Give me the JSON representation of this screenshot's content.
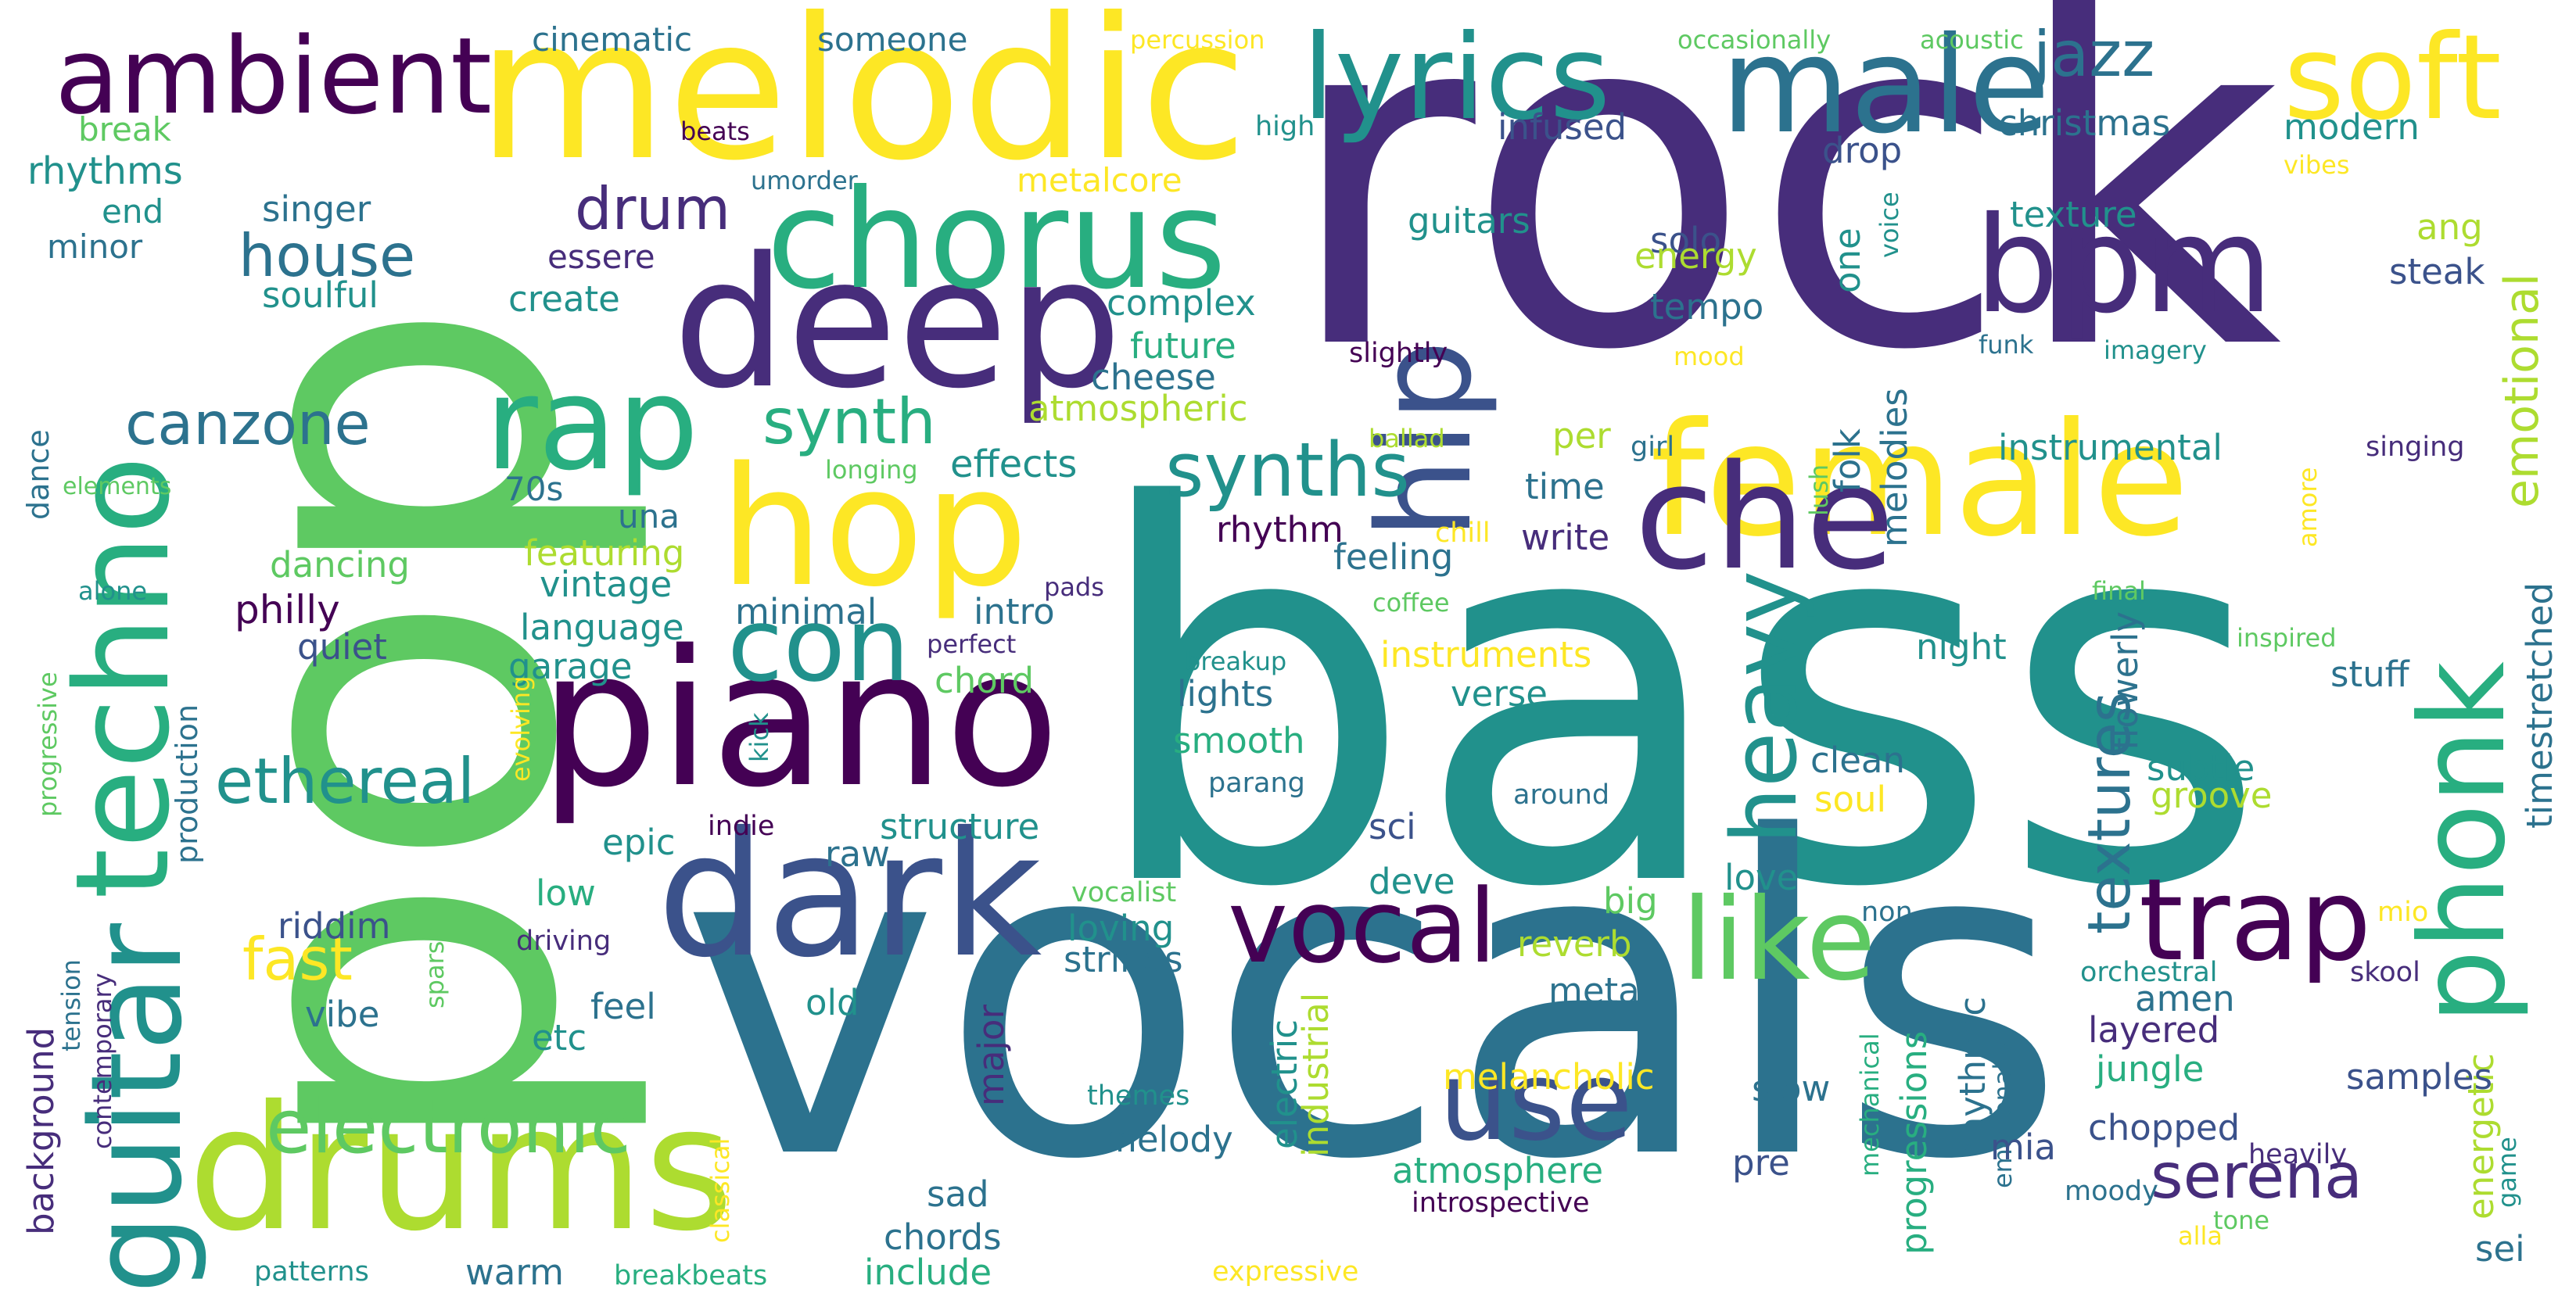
{
  "palette": {
    "dark_purple": "#440154",
    "indigo": "#472d7b",
    "slate_blue": "#3b528b",
    "steel_blue": "#2c728e",
    "teal": "#21918c",
    "green_teal": "#28ae80",
    "green": "#5ec962",
    "lime": "#addc30",
    "yellow": "#fde725"
  },
  "words": [
    {
      "text": "bass",
      "color": "#21918c"
    },
    {
      "text": "rock",
      "color": "#472d7b"
    },
    {
      "text": "pop",
      "color": "#5ec962"
    },
    {
      "text": "vocals",
      "color": "#2c728e"
    },
    {
      "text": "melodic",
      "color": "#fde725"
    },
    {
      "text": "deep",
      "color": "#472d7b"
    },
    {
      "text": "piano",
      "color": "#440154"
    },
    {
      "text": "dark",
      "color": "#3b528b"
    },
    {
      "text": "drums",
      "color": "#addc30"
    },
    {
      "text": "hop",
      "color": "#fde725"
    },
    {
      "text": "female",
      "color": "#fde725"
    },
    {
      "text": "chorus",
      "color": "#28ae80"
    },
    {
      "text": "male",
      "color": "#2c728e"
    },
    {
      "text": "rap",
      "color": "#28ae80"
    },
    {
      "text": "techno",
      "color": "#28ae80"
    },
    {
      "text": "guitar",
      "color": "#21918c"
    },
    {
      "text": "hip",
      "color": "#3b528b"
    },
    {
      "text": "lyrics",
      "color": "#21918c"
    },
    {
      "text": "soft",
      "color": "#fde725"
    },
    {
      "text": "bpm",
      "color": "#472d7b"
    },
    {
      "text": "ambient",
      "color": "#440154"
    },
    {
      "text": "che",
      "color": "#472d7b"
    },
    {
      "text": "phonk",
      "color": "#28ae80"
    },
    {
      "text": "trap",
      "color": "#440154"
    },
    {
      "text": "vocal",
      "color": "#440154"
    },
    {
      "text": "use",
      "color": "#3b528b"
    },
    {
      "text": "like",
      "color": "#5ec962"
    },
    {
      "text": "con",
      "color": "#21918c"
    },
    {
      "text": "electronic",
      "color": "#5ec962"
    },
    {
      "text": "heavy",
      "color": "#21918c"
    },
    {
      "text": "synths",
      "color": "#21918c"
    },
    {
      "text": "jazz",
      "color": "#2c728e"
    },
    {
      "text": "serena",
      "color": "#472d7b"
    },
    {
      "text": "ethereal",
      "color": "#21918c"
    },
    {
      "text": "synth",
      "color": "#28ae80"
    },
    {
      "text": "canzone",
      "color": "#2c728e"
    },
    {
      "text": "house",
      "color": "#2c728e"
    },
    {
      "text": "drum",
      "color": "#472d7b"
    },
    {
      "text": "fast",
      "color": "#fde725"
    },
    {
      "text": "textures",
      "color": "#2c728e"
    },
    {
      "text": "emotional",
      "color": "#addc30"
    },
    {
      "text": "cinematic",
      "color": "#2c728e"
    },
    {
      "text": "someone",
      "color": "#2c728e"
    },
    {
      "text": "percussion",
      "color": "#fde725"
    },
    {
      "text": "occasionally",
      "color": "#5ec962"
    },
    {
      "text": "acoustic",
      "color": "#5ec962"
    },
    {
      "text": "break",
      "color": "#5ec962"
    },
    {
      "text": "rhythms",
      "color": "#21918c"
    },
    {
      "text": "end",
      "color": "#21918c"
    },
    {
      "text": "minor",
      "color": "#2c728e"
    },
    {
      "text": "singer",
      "color": "#2c728e"
    },
    {
      "text": "soulful",
      "color": "#21918c"
    },
    {
      "text": "essere",
      "color": "#472d7b"
    },
    {
      "text": "create",
      "color": "#21918c"
    },
    {
      "text": "beats",
      "color": "#440154"
    },
    {
      "text": "umorder",
      "color": "#2c728e"
    },
    {
      "text": "high",
      "color": "#21918c"
    },
    {
      "text": "metalcore",
      "color": "#fde725"
    },
    {
      "text": "infused",
      "color": "#3b528b"
    },
    {
      "text": "drop",
      "color": "#3b528b"
    },
    {
      "text": "christmas",
      "color": "#2c728e"
    },
    {
      "text": "modern",
      "color": "#21918c"
    },
    {
      "text": "vibes",
      "color": "#fde725"
    },
    {
      "text": "guitars",
      "color": "#21918c"
    },
    {
      "text": "solo",
      "color": "#3b528b"
    },
    {
      "text": "energy",
      "color": "#addc30"
    },
    {
      "text": "tempo",
      "color": "#2c728e"
    },
    {
      "text": "mood",
      "color": "#fde725"
    },
    {
      "text": "texture",
      "color": "#21918c"
    },
    {
      "text": "funk",
      "color": "#2c728e"
    },
    {
      "text": "imagery",
      "color": "#21918c"
    },
    {
      "text": "ang",
      "color": "#addc30"
    },
    {
      "text": "steak",
      "color": "#3b528b"
    },
    {
      "text": "complex",
      "color": "#21918c"
    },
    {
      "text": "future",
      "color": "#28ae80"
    },
    {
      "text": "cheese",
      "color": "#2c728e"
    },
    {
      "text": "atmospheric",
      "color": "#addc30"
    },
    {
      "text": "slightly",
      "color": "#440154"
    },
    {
      "text": "one",
      "color": "#21918c"
    },
    {
      "text": "voice",
      "color": "#21918c"
    },
    {
      "text": "elements",
      "color": "#5ec962"
    },
    {
      "text": "dance",
      "color": "#2c728e"
    },
    {
      "text": "alone",
      "color": "#21918c"
    },
    {
      "text": "70s",
      "color": "#2c728e"
    },
    {
      "text": "una",
      "color": "#2c728e"
    },
    {
      "text": "longing",
      "color": "#5ec962"
    },
    {
      "text": "effects",
      "color": "#21918c"
    },
    {
      "text": "ballad",
      "color": "#addc30"
    },
    {
      "text": "per",
      "color": "#addc30"
    },
    {
      "text": "girl",
      "color": "#2c728e"
    },
    {
      "text": "time",
      "color": "#2c728e"
    },
    {
      "text": "chill",
      "color": "#fde725"
    },
    {
      "text": "instrumental",
      "color": "#21918c"
    },
    {
      "text": "singing",
      "color": "#472d7b"
    },
    {
      "text": "lush",
      "color": "#5ec962"
    },
    {
      "text": "amore",
      "color": "#fde725"
    },
    {
      "text": "folk",
      "color": "#2c728e"
    },
    {
      "text": "melodies",
      "color": "#2c728e"
    },
    {
      "text": "featuring",
      "color": "#addc30"
    },
    {
      "text": "dancing",
      "color": "#5ec962"
    },
    {
      "text": "rhythm",
      "color": "#440154"
    },
    {
      "text": "write",
      "color": "#472d7b"
    },
    {
      "text": "feeling",
      "color": "#2c728e"
    },
    {
      "text": "vintage",
      "color": "#21918c"
    },
    {
      "text": "philly",
      "color": "#440154"
    },
    {
      "text": "quiet",
      "color": "#3b528b"
    },
    {
      "text": "language",
      "color": "#21918c"
    },
    {
      "text": "minimal",
      "color": "#2c728e"
    },
    {
      "text": "intro",
      "color": "#2c728e"
    },
    {
      "text": "pads",
      "color": "#472d7b"
    },
    {
      "text": "coffee",
      "color": "#5ec962"
    },
    {
      "text": "final",
      "color": "#5ec962"
    },
    {
      "text": "timestretched",
      "color": "#2c728e"
    },
    {
      "text": "flowerly",
      "color": "#2c728e"
    },
    {
      "text": "inspired",
      "color": "#5ec962"
    },
    {
      "text": "night",
      "color": "#21918c"
    },
    {
      "text": "stuff",
      "color": "#2c728e"
    },
    {
      "text": "garage",
      "color": "#21918c"
    },
    {
      "text": "chord",
      "color": "#5ec962"
    },
    {
      "text": "perfect",
      "color": "#472d7b"
    },
    {
      "text": "breakup",
      "color": "#21918c"
    },
    {
      "text": "instruments",
      "color": "#fde725"
    },
    {
      "text": "lights",
      "color": "#2c728e"
    },
    {
      "text": "verse",
      "color": "#21918c"
    },
    {
      "text": "smooth",
      "color": "#28ae80"
    },
    {
      "text": "progressive",
      "color": "#5ec962"
    },
    {
      "text": "production",
      "color": "#2c728e"
    },
    {
      "text": "evolving",
      "color": "#fde725"
    },
    {
      "text": "kick",
      "color": "#21918c"
    },
    {
      "text": "indie",
      "color": "#440154"
    },
    {
      "text": "parang",
      "color": "#2c728e"
    },
    {
      "text": "around",
      "color": "#2c728e"
    },
    {
      "text": "clean",
      "color": "#2c728e"
    },
    {
      "text": "subtle",
      "color": "#21918c"
    },
    {
      "text": "groove",
      "color": "#addc30"
    },
    {
      "text": "soul",
      "color": "#fde725"
    },
    {
      "text": "structure",
      "color": "#21918c"
    },
    {
      "text": "epic",
      "color": "#21918c"
    },
    {
      "text": "raw",
      "color": "#2c728e"
    },
    {
      "text": "sci",
      "color": "#3b528b"
    },
    {
      "text": "deve",
      "color": "#21918c"
    },
    {
      "text": "love",
      "color": "#21918c"
    },
    {
      "text": "low",
      "color": "#28ae80"
    },
    {
      "text": "riddim",
      "color": "#3b528b"
    },
    {
      "text": "vocalist",
      "color": "#5ec962"
    },
    {
      "text": "big",
      "color": "#5ec962"
    },
    {
      "text": "non",
      "color": "#2c728e"
    },
    {
      "text": "mio",
      "color": "#fde725"
    },
    {
      "text": "driving",
      "color": "#472d7b"
    },
    {
      "text": "loving",
      "color": "#21918c"
    },
    {
      "text": "reverb",
      "color": "#addc30"
    },
    {
      "text": "strings",
      "color": "#2c728e"
    },
    {
      "text": "metal",
      "color": "#2c728e"
    },
    {
      "text": "orchestral",
      "color": "#21918c"
    },
    {
      "text": "skool",
      "color": "#472d7b"
    },
    {
      "text": "amen",
      "color": "#2c728e"
    },
    {
      "text": "layered",
      "color": "#472d7b"
    },
    {
      "text": "vibe",
      "color": "#2c728e"
    },
    {
      "text": "sparse",
      "color": "#5ec962"
    },
    {
      "text": "tension",
      "color": "#2c728e"
    },
    {
      "text": "contemporary",
      "color": "#472d7b"
    },
    {
      "text": "background",
      "color": "#472d7b"
    },
    {
      "text": "feel",
      "color": "#2c728e"
    },
    {
      "text": "etc",
      "color": "#21918c"
    },
    {
      "text": "old",
      "color": "#21918c"
    },
    {
      "text": "major",
      "color": "#472d7b"
    },
    {
      "text": "electric",
      "color": "#21918c"
    },
    {
      "text": "industrial",
      "color": "#addc30"
    },
    {
      "text": "progressions",
      "color": "#28ae80"
    },
    {
      "text": "rhythmic",
      "color": "#2c728e"
    },
    {
      "text": "emotionally",
      "color": "#2c728e"
    },
    {
      "text": "mechanical",
      "color": "#28ae80"
    },
    {
      "text": "jungle",
      "color": "#28ae80"
    },
    {
      "text": "energetic",
      "color": "#addc30"
    },
    {
      "text": "samples",
      "color": "#3b528b"
    },
    {
      "text": "game",
      "color": "#21918c"
    },
    {
      "text": "melancholic",
      "color": "#fde725"
    },
    {
      "text": "slow",
      "color": "#2c728e"
    },
    {
      "text": "themes",
      "color": "#21918c"
    },
    {
      "text": "melody",
      "color": "#2c728e"
    },
    {
      "text": "atmosphere",
      "color": "#28ae80"
    },
    {
      "text": "pre",
      "color": "#3b528b"
    },
    {
      "text": "mia",
      "color": "#3b528b"
    },
    {
      "text": "chopped",
      "color": "#3b528b"
    },
    {
      "text": "heavily",
      "color": "#472d7b"
    },
    {
      "text": "moody",
      "color": "#2c728e"
    },
    {
      "text": "tone",
      "color": "#5ec962"
    },
    {
      "text": "alla",
      "color": "#fde725"
    },
    {
      "text": "sei",
      "color": "#2c728e"
    },
    {
      "text": "introspective",
      "color": "#440154"
    },
    {
      "text": "sad",
      "color": "#2c728e"
    },
    {
      "text": "chords",
      "color": "#2c728e"
    },
    {
      "text": "include",
      "color": "#28ae80"
    },
    {
      "text": "warm",
      "color": "#2c728e"
    },
    {
      "text": "patterns",
      "color": "#21918c"
    },
    {
      "text": "breakbeats",
      "color": "#28ae80"
    },
    {
      "text": "expressive",
      "color": "#fde725"
    },
    {
      "text": "classical",
      "color": "#fde725"
    }
  ]
}
